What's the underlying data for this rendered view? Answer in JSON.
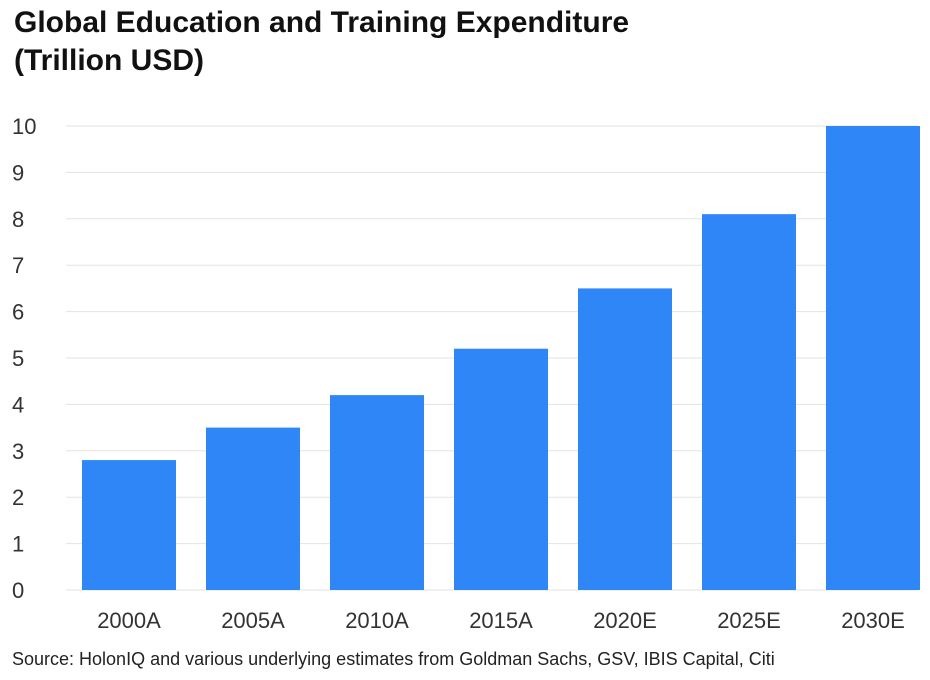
{
  "header": {
    "title_line1": "Global Education and Training Expenditure",
    "title_line2": "(Trillion USD)"
  },
  "footer": {
    "source": "Source: HolonIQ and various underlying estimates from Goldman Sachs, GSV, IBIS Capital, Citi"
  },
  "colors": {
    "bar": "#2f86f6",
    "grid": "#e3e3e3"
  },
  "chart_data": {
    "type": "bar",
    "title": "Global Education and Training Expenditure (Trillion USD)",
    "categories": [
      "2000A",
      "2005A",
      "2010A",
      "2015A",
      "2020E",
      "2025E",
      "2030E"
    ],
    "values": [
      2.8,
      3.5,
      4.2,
      5.2,
      6.5,
      8.1,
      10
    ],
    "xlabel": "",
    "ylabel": "",
    "ylim": [
      0,
      10
    ],
    "yticks": [
      0,
      1,
      2,
      3,
      4,
      5,
      6,
      7,
      8,
      9,
      10
    ],
    "grid": true,
    "legend": "none"
  }
}
